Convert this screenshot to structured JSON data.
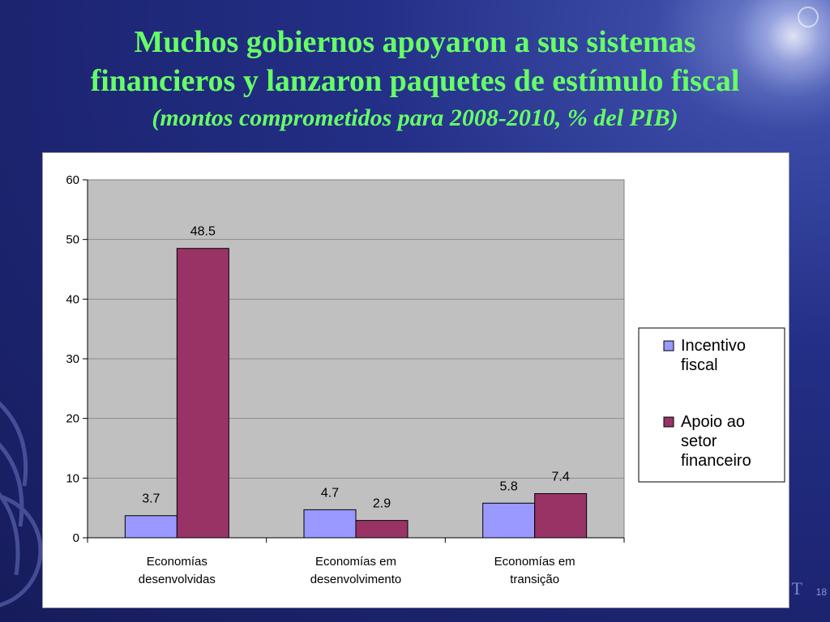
{
  "slide": {
    "title_line1": "Muchos gobiernos apoyaron a sus sistemas",
    "title_line2": "financieros y lanzaron paquetes de estímulo fiscal",
    "subtitle": "(montos  comprometidos para 2008-2010, % del PIB)",
    "footer_mark": "T",
    "page_number": "18"
  },
  "colors": {
    "title": "#66ff66",
    "plot_background": "#c0c0c0",
    "series_fiscal": "#9999ff",
    "series_financial": "#993366"
  },
  "chart_data": {
    "type": "bar",
    "categories": [
      [
        "Economías",
        "desenvolvidas"
      ],
      [
        "Economías em",
        "desenvolvimento"
      ],
      [
        "Economías em",
        "transição"
      ]
    ],
    "series": [
      {
        "name": [
          "Incentivo",
          "fiscal"
        ],
        "values": [
          3.7,
          4.7,
          5.8
        ],
        "labels": [
          "3.7",
          "4.7",
          "5.8"
        ],
        "color": "#9999ff"
      },
      {
        "name": [
          "Apoio ao",
          "setor",
          "financeiro"
        ],
        "values": [
          48.5,
          2.9,
          7.4
        ],
        "labels": [
          "48.5",
          "2.9",
          "7.4"
        ],
        "color": "#993366"
      }
    ],
    "ylim": [
      0,
      60
    ],
    "yticks": [
      "0",
      "10",
      "20",
      "30",
      "40",
      "50",
      "60"
    ],
    "grid": true,
    "legend": "right",
    "xlabel": "",
    "ylabel": ""
  }
}
